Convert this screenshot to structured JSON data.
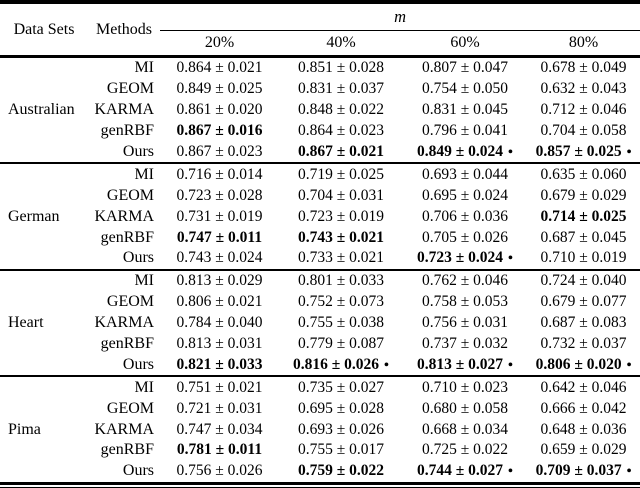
{
  "table": {
    "bullet_symbol": "•",
    "header": {
      "datasets_label": "Data Sets",
      "methods_label": "Methods",
      "m_label": "m",
      "percent_labels": [
        "20%",
        "40%",
        "60%",
        "80%"
      ]
    },
    "groups": [
      {
        "dataset": "Australian",
        "rows": [
          {
            "method": "MI",
            "values": [
              {
                "text": "0.864 ± 0.021",
                "bold": false,
                "bullet": false
              },
              {
                "text": "0.851 ± 0.028",
                "bold": false,
                "bullet": false
              },
              {
                "text": "0.807 ± 0.047",
                "bold": false,
                "bullet": false
              },
              {
                "text": "0.678 ± 0.049",
                "bold": false,
                "bullet": false
              }
            ]
          },
          {
            "method": "GEOM",
            "values": [
              {
                "text": "0.849 ± 0.025",
                "bold": false,
                "bullet": false
              },
              {
                "text": "0.831 ± 0.037",
                "bold": false,
                "bullet": false
              },
              {
                "text": "0.754 ± 0.050",
                "bold": false,
                "bullet": false
              },
              {
                "text": "0.632 ± 0.043",
                "bold": false,
                "bullet": false
              }
            ]
          },
          {
            "method": "KARMA",
            "values": [
              {
                "text": "0.861 ± 0.020",
                "bold": false,
                "bullet": false
              },
              {
                "text": "0.848 ± 0.022",
                "bold": false,
                "bullet": false
              },
              {
                "text": "0.831 ± 0.045",
                "bold": false,
                "bullet": false
              },
              {
                "text": "0.712 ± 0.046",
                "bold": false,
                "bullet": false
              }
            ]
          },
          {
            "method": "genRBF",
            "values": [
              {
                "text": "0.867 ± 0.016",
                "bold": true,
                "bullet": false
              },
              {
                "text": "0.864 ± 0.023",
                "bold": false,
                "bullet": false
              },
              {
                "text": "0.796 ± 0.041",
                "bold": false,
                "bullet": false
              },
              {
                "text": "0.704 ± 0.058",
                "bold": false,
                "bullet": false
              }
            ]
          },
          {
            "method": "Ours",
            "values": [
              {
                "text": "0.867 ± 0.023",
                "bold": false,
                "bullet": false
              },
              {
                "text": "0.867 ± 0.021",
                "bold": true,
                "bullet": false
              },
              {
                "text": "0.849 ± 0.024",
                "bold": true,
                "bullet": true
              },
              {
                "text": "0.857 ± 0.025",
                "bold": true,
                "bullet": true
              }
            ]
          }
        ]
      },
      {
        "dataset": "German",
        "rows": [
          {
            "method": "MI",
            "values": [
              {
                "text": "0.716 ± 0.014",
                "bold": false,
                "bullet": false
              },
              {
                "text": "0.719 ± 0.025",
                "bold": false,
                "bullet": false
              },
              {
                "text": "0.693 ± 0.044",
                "bold": false,
                "bullet": false
              },
              {
                "text": "0.635 ± 0.060",
                "bold": false,
                "bullet": false
              }
            ]
          },
          {
            "method": "GEOM",
            "values": [
              {
                "text": "0.723 ± 0.028",
                "bold": false,
                "bullet": false
              },
              {
                "text": "0.704 ± 0.031",
                "bold": false,
                "bullet": false
              },
              {
                "text": "0.695 ± 0.024",
                "bold": false,
                "bullet": false
              },
              {
                "text": "0.679 ± 0.029",
                "bold": false,
                "bullet": false
              }
            ]
          },
          {
            "method": "KARMA",
            "values": [
              {
                "text": "0.731 ± 0.019",
                "bold": false,
                "bullet": false
              },
              {
                "text": "0.723 ± 0.019",
                "bold": false,
                "bullet": false
              },
              {
                "text": "0.706 ± 0.036",
                "bold": false,
                "bullet": false
              },
              {
                "text": "0.714 ± 0.025",
                "bold": true,
                "bullet": false
              }
            ]
          },
          {
            "method": "genRBF",
            "values": [
              {
                "text": "0.747 ± 0.011",
                "bold": true,
                "bullet": false
              },
              {
                "text": "0.743 ± 0.021",
                "bold": true,
                "bullet": false
              },
              {
                "text": "0.705 ± 0.026",
                "bold": false,
                "bullet": false
              },
              {
                "text": "0.687 ± 0.045",
                "bold": false,
                "bullet": false
              }
            ]
          },
          {
            "method": "Ours",
            "values": [
              {
                "text": "0.743 ± 0.024",
                "bold": false,
                "bullet": false
              },
              {
                "text": "0.733 ± 0.021",
                "bold": false,
                "bullet": false
              },
              {
                "text": "0.723 ± 0.024",
                "bold": true,
                "bullet": true
              },
              {
                "text": "0.710 ± 0.019",
                "bold": false,
                "bullet": false
              }
            ]
          }
        ]
      },
      {
        "dataset": "Heart",
        "rows": [
          {
            "method": "MI",
            "values": [
              {
                "text": "0.813 ± 0.029",
                "bold": false,
                "bullet": false
              },
              {
                "text": "0.801 ± 0.033",
                "bold": false,
                "bullet": false
              },
              {
                "text": "0.762 ± 0.046",
                "bold": false,
                "bullet": false
              },
              {
                "text": "0.724 ± 0.040",
                "bold": false,
                "bullet": false
              }
            ]
          },
          {
            "method": "GEOM",
            "values": [
              {
                "text": "0.806 ± 0.021",
                "bold": false,
                "bullet": false
              },
              {
                "text": "0.752 ± 0.073",
                "bold": false,
                "bullet": false
              },
              {
                "text": "0.758 ± 0.053",
                "bold": false,
                "bullet": false
              },
              {
                "text": "0.679 ± 0.077",
                "bold": false,
                "bullet": false
              }
            ]
          },
          {
            "method": "KARMA",
            "values": [
              {
                "text": "0.784 ± 0.040",
                "bold": false,
                "bullet": false
              },
              {
                "text": "0.755 ± 0.038",
                "bold": false,
                "bullet": false
              },
              {
                "text": "0.756 ± 0.031",
                "bold": false,
                "bullet": false
              },
              {
                "text": "0.687 ± 0.083",
                "bold": false,
                "bullet": false
              }
            ]
          },
          {
            "method": "genRBF",
            "values": [
              {
                "text": "0.813 ± 0.031",
                "bold": false,
                "bullet": false
              },
              {
                "text": "0.779 ± 0.087",
                "bold": false,
                "bullet": false
              },
              {
                "text": "0.737 ± 0.032",
                "bold": false,
                "bullet": false
              },
              {
                "text": "0.732 ± 0.037",
                "bold": false,
                "bullet": false
              }
            ]
          },
          {
            "method": "Ours",
            "values": [
              {
                "text": "0.821 ± 0.033",
                "bold": true,
                "bullet": false
              },
              {
                "text": "0.816 ± 0.026",
                "bold": true,
                "bullet": true
              },
              {
                "text": "0.813 ± 0.027",
                "bold": true,
                "bullet": true
              },
              {
                "text": "0.806 ± 0.020",
                "bold": true,
                "bullet": true
              }
            ]
          }
        ]
      },
      {
        "dataset": "Pima",
        "rows": [
          {
            "method": "MI",
            "values": [
              {
                "text": "0.751 ± 0.021",
                "bold": false,
                "bullet": false
              },
              {
                "text": "0.735 ± 0.027",
                "bold": false,
                "bullet": false
              },
              {
                "text": "0.710 ± 0.023",
                "bold": false,
                "bullet": false
              },
              {
                "text": "0.642 ± 0.046",
                "bold": false,
                "bullet": false
              }
            ]
          },
          {
            "method": "GEOM",
            "values": [
              {
                "text": "0.721 ± 0.031",
                "bold": false,
                "bullet": false
              },
              {
                "text": "0.695 ± 0.028",
                "bold": false,
                "bullet": false
              },
              {
                "text": "0.680 ± 0.058",
                "bold": false,
                "bullet": false
              },
              {
                "text": "0.666 ± 0.042",
                "bold": false,
                "bullet": false
              }
            ]
          },
          {
            "method": "KARMA",
            "values": [
              {
                "text": "0.747 ± 0.034",
                "bold": false,
                "bullet": false
              },
              {
                "text": "0.693 ± 0.026",
                "bold": false,
                "bullet": false
              },
              {
                "text": "0.668 ± 0.034",
                "bold": false,
                "bullet": false
              },
              {
                "text": "0.648 ± 0.036",
                "bold": false,
                "bullet": false
              }
            ]
          },
          {
            "method": "genRBF",
            "values": [
              {
                "text": "0.781 ± 0.011",
                "bold": true,
                "bullet": false
              },
              {
                "text": "0.755 ± 0.017",
                "bold": false,
                "bullet": false
              },
              {
                "text": "0.725 ± 0.022",
                "bold": false,
                "bullet": false
              },
              {
                "text": "0.659 ± 0.029",
                "bold": false,
                "bullet": false
              }
            ]
          },
          {
            "method": "Ours",
            "values": [
              {
                "text": "0.756 ± 0.026",
                "bold": false,
                "bullet": false
              },
              {
                "text": "0.759 ± 0.022",
                "bold": true,
                "bullet": false
              },
              {
                "text": "0.744 ± 0.027",
                "bold": true,
                "bullet": true
              },
              {
                "text": "0.709 ± 0.037",
                "bold": true,
                "bullet": true
              }
            ]
          }
        ]
      }
    ]
  }
}
